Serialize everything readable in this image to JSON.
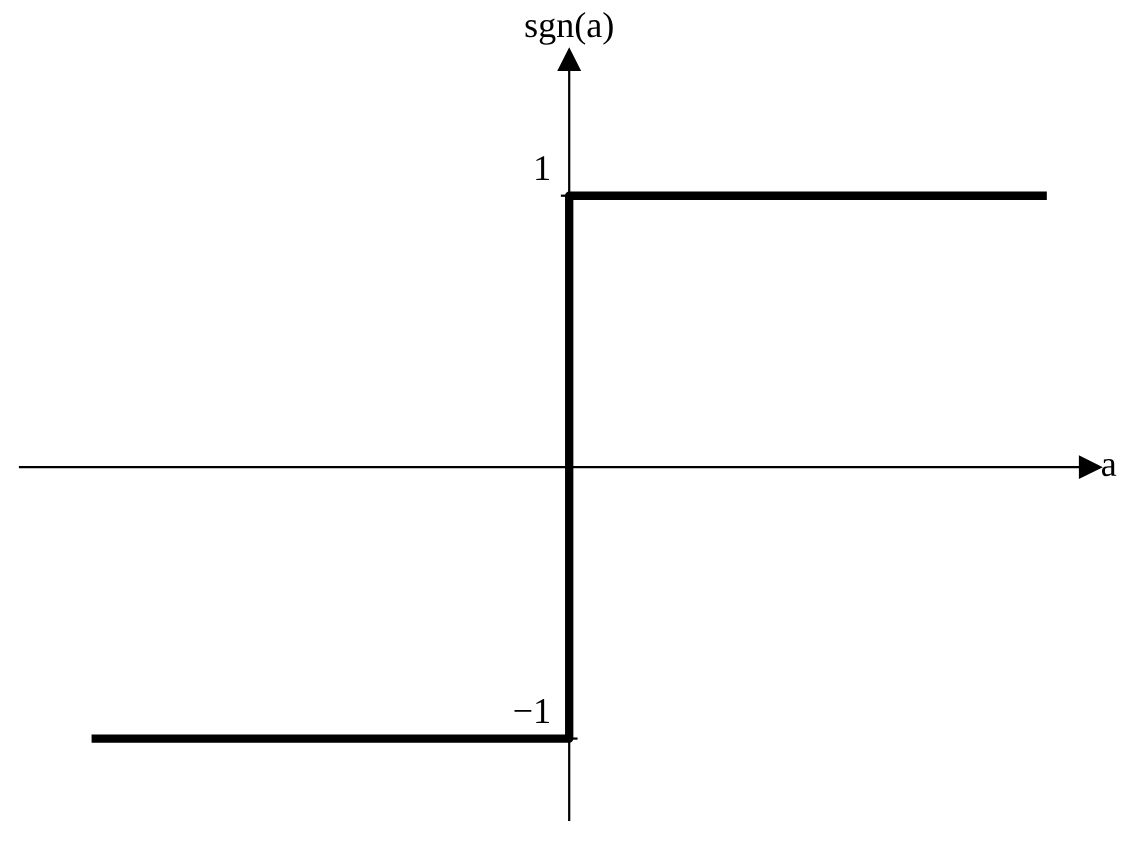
{
  "chart_data": {
    "type": "step",
    "xlabel": "a",
    "ylabel": "sgn(a)",
    "categories": [
      null,
      null,
      null
    ],
    "values": [
      -1,
      1,
      1
    ],
    "color": "#000000",
    "ylim": [
      -1.3,
      1.5
    ],
    "yticks": [
      1,
      {
        "value": -1,
        "label": "−1"
      }
    ],
    "marker": "none",
    "line_style": "solid"
  }
}
